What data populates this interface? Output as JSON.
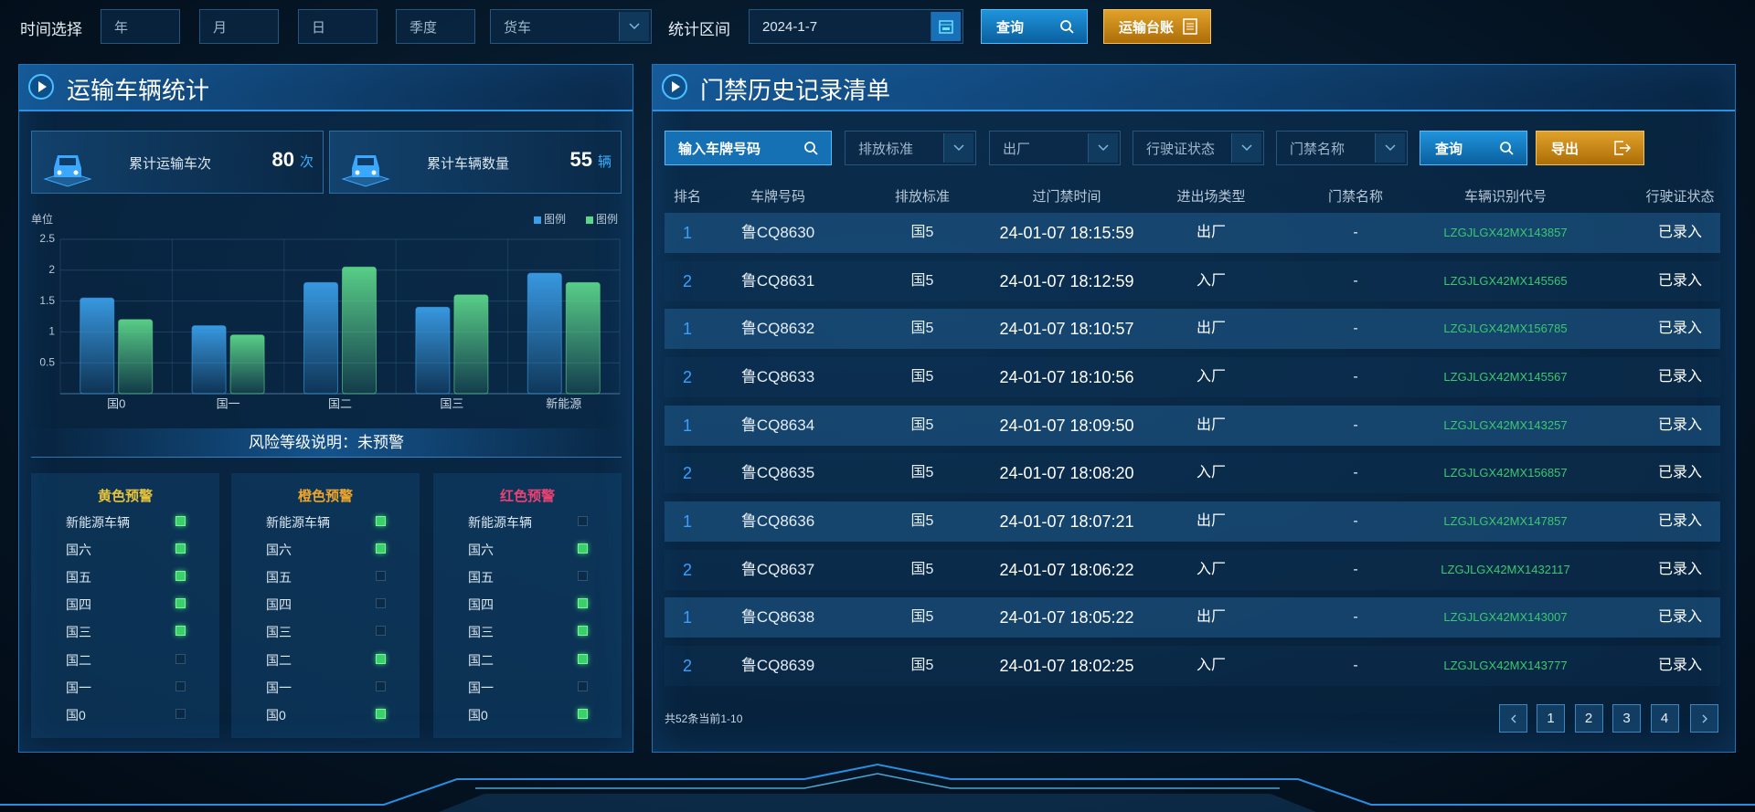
{
  "toolbar": {
    "time_label": "时间选择",
    "year": "年",
    "month": "月",
    "day": "日",
    "quarter": "季度",
    "vehicle_type": "货车",
    "range_label": "统计区间",
    "date": "2024-1-7",
    "query": "查询",
    "ledger": "运输台账"
  },
  "left_panel": {
    "title": "运输车辆统计",
    "stats": [
      {
        "label": "累计运输车次",
        "value": 80,
        "unit": "次"
      },
      {
        "label": "累计车辆数量",
        "value": 55,
        "unit": "辆"
      }
    ],
    "risk": "风险等级说明：未预警",
    "warnings": [
      {
        "title": "黄色预警",
        "color": "#e8c43a",
        "items": [
          {
            "label": "新能源车辆",
            "checked": true
          },
          {
            "label": "国六",
            "checked": true
          },
          {
            "label": "国五",
            "checked": true
          },
          {
            "label": "国四",
            "checked": true
          },
          {
            "label": "国三",
            "checked": true
          },
          {
            "label": "国二",
            "checked": false
          },
          {
            "label": "国一",
            "checked": false
          },
          {
            "label": "国0",
            "checked": false
          }
        ]
      },
      {
        "title": "橙色预警",
        "color": "#f0a52a",
        "items": [
          {
            "label": "新能源车辆",
            "checked": true
          },
          {
            "label": "国六",
            "checked": true
          },
          {
            "label": "国五",
            "checked": false
          },
          {
            "label": "国四",
            "checked": false
          },
          {
            "label": "国三",
            "checked": false
          },
          {
            "label": "国二",
            "checked": true
          },
          {
            "label": "国一",
            "checked": false
          },
          {
            "label": "国0",
            "checked": true
          }
        ]
      },
      {
        "title": "红色预警",
        "color": "#ec4272",
        "items": [
          {
            "label": "新能源车辆",
            "checked": false
          },
          {
            "label": "国六",
            "checked": true
          },
          {
            "label": "国五",
            "checked": false
          },
          {
            "label": "国四",
            "checked": true
          },
          {
            "label": "国三",
            "checked": true
          },
          {
            "label": "国二",
            "checked": true
          },
          {
            "label": "国一",
            "checked": false
          },
          {
            "label": "国0",
            "checked": true
          }
        ]
      }
    ]
  },
  "chart_data": {
    "type": "bar",
    "y_label": "单位",
    "categories": [
      "国0",
      "国一",
      "国二",
      "国三",
      "新能源"
    ],
    "series": [
      {
        "name": "图例",
        "color": "#3a9ee8",
        "values": [
          1.55,
          1.1,
          1.8,
          1.4,
          1.95
        ]
      },
      {
        "name": "图例",
        "color": "#5cd68a",
        "values": [
          1.2,
          0.95,
          2.05,
          1.6,
          1.8
        ]
      }
    ],
    "ylim": [
      0,
      2.5
    ],
    "yticks": [
      0.5,
      1,
      1.5,
      2,
      2.5
    ],
    "grid": true,
    "legend_position": "top-right"
  },
  "table_panel": {
    "title": "门禁历史记录清单",
    "filters": {
      "plate": "输入车牌号码",
      "emission": "排放标准",
      "direction": "出厂",
      "license": "行驶证状态",
      "gate": "门禁名称",
      "query": "查询",
      "export": "导出"
    },
    "columns": [
      "排名",
      "车牌号码",
      "排放标准",
      "过门禁时间",
      "进出场类型",
      "门禁名称",
      "车辆识别代号",
      "行驶证状态"
    ],
    "rows": [
      [
        "1",
        "鲁CQ8630",
        "国5",
        "24-01-07 18:15:59",
        "出厂",
        "-",
        "LZGJLGX42MX143857",
        "已录入"
      ],
      [
        "2",
        "鲁CQ8631",
        "国5",
        "24-01-07 18:12:59",
        "入厂",
        "-",
        "LZGJLGX42MX145565",
        "已录入"
      ],
      [
        "1",
        "鲁CQ8632",
        "国5",
        "24-01-07 18:10:57",
        "出厂",
        "-",
        "LZGJLGX42MX156785",
        "已录入"
      ],
      [
        "2",
        "鲁CQ8633",
        "国5",
        "24-01-07 18:10:56",
        "入厂",
        "-",
        "LZGJLGX42MX145567",
        "已录入"
      ],
      [
        "1",
        "鲁CQ8634",
        "国5",
        "24-01-07 18:09:50",
        "出厂",
        "-",
        "LZGJLGX42MX143257",
        "已录入"
      ],
      [
        "2",
        "鲁CQ8635",
        "国5",
        "24-01-07 18:08:20",
        "入厂",
        "-",
        "LZGJLGX42MX156857",
        "已录入"
      ],
      [
        "1",
        "鲁CQ8636",
        "国5",
        "24-01-07 18:07:21",
        "出厂",
        "-",
        "LZGJLGX42MX147857",
        "已录入"
      ],
      [
        "2",
        "鲁CQ8637",
        "国5",
        "24-01-07 18:06:22",
        "入厂",
        "-",
        "LZGJLGX42MX1432117",
        "已录入"
      ],
      [
        "1",
        "鲁CQ8638",
        "国5",
        "24-01-07 18:05:22",
        "出厂",
        "-",
        "LZGJLGX42MX143007",
        "已录入"
      ],
      [
        "2",
        "鲁CQ8639",
        "国5",
        "24-01-07 18:02:25",
        "入厂",
        "-",
        "LZGJLGX42MX143777",
        "已录入"
      ]
    ],
    "summary": "共52条当前1-10",
    "pages": [
      1,
      2,
      3,
      4
    ]
  }
}
